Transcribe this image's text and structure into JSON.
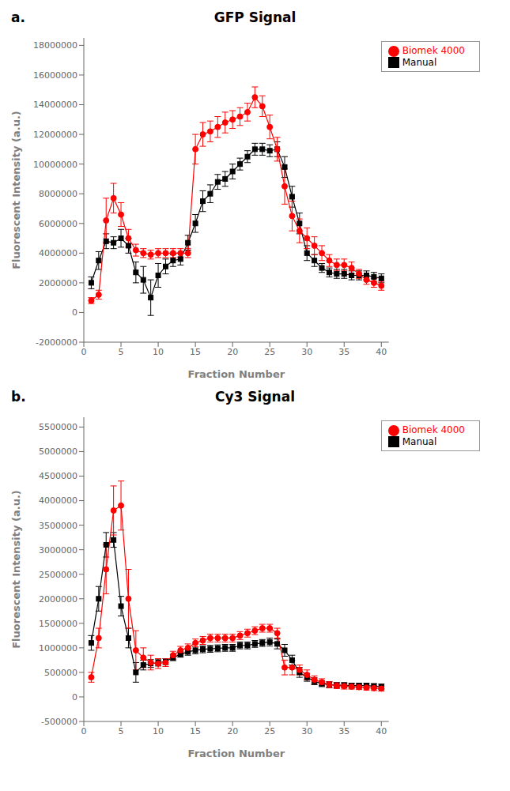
{
  "chart_data": [
    {
      "type": "line",
      "title": "GFP Signal",
      "annotations": [
        "a."
      ],
      "x_label": "Fraction Number",
      "y_label": "Fluorescent Intensity (a.u.)",
      "xlim": [
        0,
        41
      ],
      "xticks": [
        0,
        5,
        10,
        15,
        20,
        25,
        30,
        35,
        40
      ],
      "ylim": [
        -2000000,
        18500000
      ],
      "yticks": [
        -2000000,
        0,
        2000000,
        4000000,
        6000000,
        8000000,
        10000000,
        12000000,
        14000000,
        16000000,
        18000000
      ],
      "grid": false,
      "legend": "upper right",
      "x": [
        1,
        2,
        3,
        4,
        5,
        6,
        7,
        8,
        9,
        10,
        11,
        12,
        13,
        14,
        15,
        16,
        17,
        18,
        19,
        20,
        21,
        22,
        23,
        24,
        25,
        26,
        27,
        28,
        29,
        30,
        31,
        32,
        33,
        34,
        35,
        36,
        37,
        38,
        39,
        40
      ],
      "series": [
        {
          "name": "Manual",
          "color": "#000000",
          "marker": "square",
          "line_style": "solid",
          "values": [
            2000000,
            3500000,
            4800000,
            4700000,
            5000000,
            4500000,
            2700000,
            2200000,
            1000000,
            2500000,
            3100000,
            3500000,
            3600000,
            4700000,
            6000000,
            7500000,
            8000000,
            8800000,
            9000000,
            9500000,
            10000000,
            10500000,
            11000000,
            11000000,
            10900000,
            11000000,
            9800000,
            7800000,
            6000000,
            4000000,
            3500000,
            3000000,
            2700000,
            2600000,
            2600000,
            2500000,
            2500000,
            2500000,
            2400000,
            2300000
          ],
          "errors": [
            400000,
            600000,
            500000,
            400000,
            600000,
            500000,
            700000,
            900000,
            1200000,
            800000,
            500000,
            400000,
            400000,
            500000,
            600000,
            700000,
            600000,
            500000,
            500000,
            500000,
            400000,
            400000,
            400000,
            400000,
            400000,
            500000,
            700000,
            700000,
            700000,
            500000,
            400000,
            300000,
            300000,
            300000,
            300000,
            300000,
            300000,
            300000,
            300000,
            300000
          ]
        },
        {
          "name": "Biomek 4000",
          "color": "#ff0000",
          "marker": "circle",
          "line_style": "solid",
          "values": [
            800000,
            1200000,
            6200000,
            7700000,
            6600000,
            5000000,
            4200000,
            4000000,
            3900000,
            4000000,
            4000000,
            4000000,
            4000000,
            4000000,
            11000000,
            12000000,
            12200000,
            12500000,
            12800000,
            13000000,
            13200000,
            13500000,
            14500000,
            13900000,
            12500000,
            11000000,
            8500000,
            6500000,
            5500000,
            5000000,
            4500000,
            4000000,
            3500000,
            3200000,
            3200000,
            3000000,
            2600000,
            2200000,
            2000000,
            1800000
          ],
          "errors": [
            200000,
            300000,
            1500000,
            1000000,
            800000,
            600000,
            400000,
            300000,
            300000,
            300000,
            300000,
            300000,
            300000,
            300000,
            1000000,
            800000,
            700000,
            700000,
            700000,
            600000,
            600000,
            600000,
            700000,
            700000,
            800000,
            800000,
            1200000,
            1000000,
            800000,
            700000,
            600000,
            500000,
            400000,
            400000,
            400000,
            400000,
            300000,
            300000,
            300000,
            300000
          ]
        }
      ]
    },
    {
      "type": "line",
      "title": "Cy3 Signal",
      "annotations": [
        "b."
      ],
      "x_label": "Fraction Number",
      "y_label": "Fluorescent Intensity (a.u.)",
      "xlim": [
        0,
        41
      ],
      "xticks": [
        0,
        5,
        10,
        15,
        20,
        25,
        30,
        35,
        40
      ],
      "ylim": [
        -500000,
        5700000
      ],
      "yticks": [
        -500000,
        0,
        500000,
        1000000,
        1500000,
        2000000,
        2500000,
        3000000,
        3500000,
        4000000,
        4500000,
        5000000,
        5500000
      ],
      "grid": false,
      "legend": "upper right",
      "x": [
        1,
        2,
        3,
        4,
        5,
        6,
        7,
        8,
        9,
        10,
        11,
        12,
        13,
        14,
        15,
        16,
        17,
        18,
        19,
        20,
        21,
        22,
        23,
        24,
        25,
        26,
        27,
        28,
        29,
        30,
        31,
        32,
        33,
        34,
        35,
        36,
        37,
        38,
        39,
        40
      ],
      "series": [
        {
          "name": "Manual",
          "color": "#000000",
          "marker": "square",
          "line_style": "solid",
          "values": [
            1100000,
            2000000,
            3100000,
            3200000,
            1850000,
            1200000,
            500000,
            650000,
            680000,
            700000,
            720000,
            800000,
            870000,
            920000,
            950000,
            970000,
            980000,
            990000,
            1000000,
            1000000,
            1050000,
            1050000,
            1080000,
            1100000,
            1120000,
            1080000,
            950000,
            750000,
            500000,
            400000,
            320000,
            270000,
            250000,
            240000,
            240000,
            230000,
            230000,
            230000,
            220000,
            210000
          ],
          "errors": [
            150000,
            250000,
            250000,
            150000,
            200000,
            200000,
            200000,
            100000,
            80000,
            70000,
            60000,
            60000,
            60000,
            70000,
            70000,
            70000,
            70000,
            70000,
            70000,
            70000,
            70000,
            70000,
            70000,
            70000,
            80000,
            100000,
            120000,
            100000,
            100000,
            80000,
            70000,
            60000,
            60000,
            50000,
            50000,
            50000,
            50000,
            50000,
            50000,
            50000
          ]
        },
        {
          "name": "Biomek 4000",
          "color": "#ff0000",
          "marker": "circle",
          "line_style": "solid",
          "values": [
            400000,
            1200000,
            2600000,
            3800000,
            3900000,
            2000000,
            950000,
            800000,
            700000,
            680000,
            700000,
            850000,
            950000,
            1000000,
            1100000,
            1150000,
            1200000,
            1200000,
            1200000,
            1200000,
            1250000,
            1300000,
            1350000,
            1400000,
            1400000,
            1300000,
            600000,
            600000,
            550000,
            450000,
            350000,
            300000,
            250000,
            230000,
            220000,
            210000,
            200000,
            190000,
            180000,
            170000
          ],
          "errors": [
            100000,
            200000,
            500000,
            500000,
            500000,
            600000,
            400000,
            200000,
            150000,
            100000,
            80000,
            80000,
            80000,
            80000,
            80000,
            80000,
            80000,
            80000,
            80000,
            80000,
            80000,
            80000,
            80000,
            80000,
            80000,
            100000,
            150000,
            150000,
            100000,
            100000,
            80000,
            70000,
            60000,
            60000,
            60000,
            50000,
            50000,
            50000,
            50000,
            50000
          ]
        }
      ]
    }
  ]
}
